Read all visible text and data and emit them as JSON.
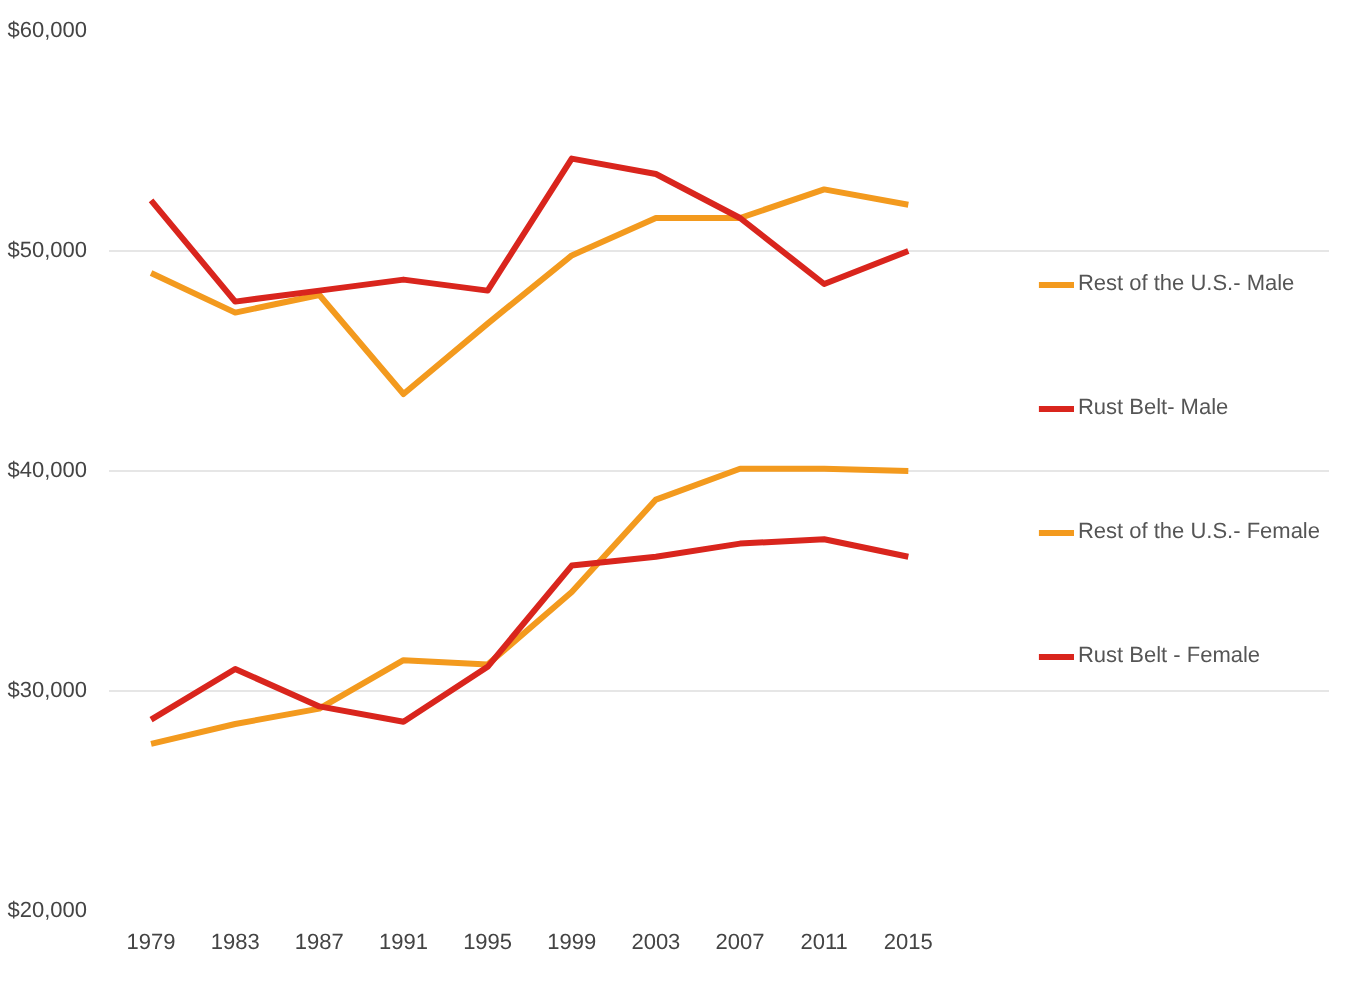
{
  "chart_data": {
    "type": "line",
    "categories": [
      "1979",
      "1983",
      "1987",
      "1991",
      "1995",
      "1999",
      "2003",
      "2007",
      "2011",
      "2015"
    ],
    "series": [
      {
        "name": "Rest of the U.S.- Male",
        "color": "#f39a1e",
        "values": [
          49000,
          47200,
          48000,
          43500,
          46700,
          49800,
          51500,
          51500,
          52800,
          52100
        ]
      },
      {
        "name": "Rust Belt- Male",
        "color": "#d9251d",
        "values": [
          52300,
          47700,
          48200,
          48700,
          48200,
          54200,
          53500,
          51500,
          48500,
          50000
        ]
      },
      {
        "name": "Rest of the U.S.- Female",
        "color": "#f39a1e",
        "values": [
          27600,
          28500,
          29200,
          31400,
          31200,
          34500,
          38700,
          40100,
          40100,
          40000
        ]
      },
      {
        "name": "Rust Belt - Female",
        "color": "#d9251d",
        "values": [
          28700,
          31000,
          29300,
          28600,
          31100,
          35700,
          36100,
          36700,
          36900,
          36100
        ]
      }
    ],
    "ylim": [
      20000,
      60000
    ],
    "yticks": [
      {
        "value": 20000,
        "label": "$20,000"
      },
      {
        "value": 30000,
        "label": "$30,000"
      },
      {
        "value": 40000,
        "label": "$40,000"
      },
      {
        "value": 50000,
        "label": "$50,000"
      },
      {
        "value": 60000,
        "label": "$60,000"
      }
    ],
    "grid": "y",
    "legend": "right",
    "marker": "none",
    "line_style": "solid"
  }
}
